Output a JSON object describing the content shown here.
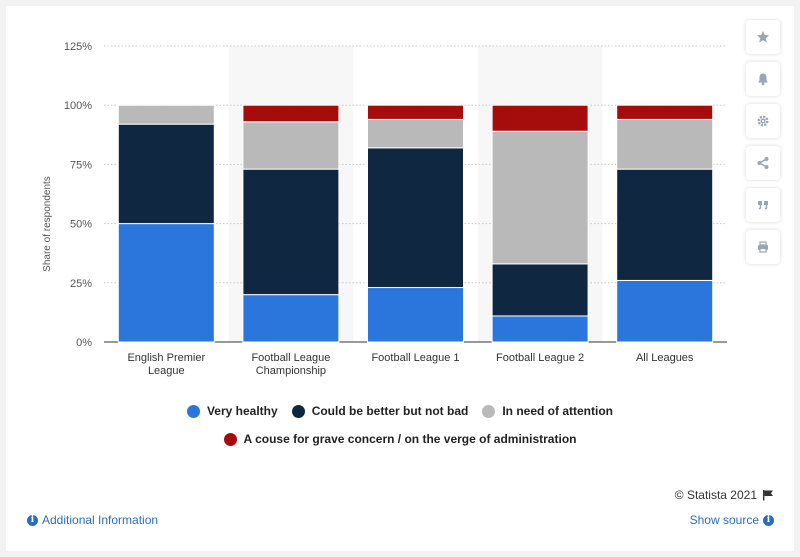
{
  "chart_data": {
    "type": "bar",
    "stacked": true,
    "title": "",
    "xlabel": "",
    "ylabel": "Share of respondents",
    "ylim": [
      0,
      125
    ],
    "yticks": [
      "0%",
      "25%",
      "50%",
      "75%",
      "100%",
      "125%"
    ],
    "grid": true,
    "legend_position": "bottom",
    "categories": [
      "English Premier League",
      "Football League Championship",
      "Football League 1",
      "Football League 2",
      "All Leagues"
    ],
    "category_lines": [
      [
        "English Premier",
        "League"
      ],
      [
        "Football League",
        "Championship"
      ],
      [
        "Football League 1"
      ],
      [
        "Football League 2"
      ],
      [
        "All Leagues"
      ]
    ],
    "series": [
      {
        "name": "Very healthy",
        "color": "#2a76dd",
        "values": [
          50,
          20,
          23,
          11,
          26
        ]
      },
      {
        "name": "Could be better but not bad",
        "color": "#0f2741",
        "values": [
          42,
          53,
          59,
          22,
          47
        ]
      },
      {
        "name": "In need of attention",
        "color": "#b9b9b9",
        "values": [
          8,
          20,
          12,
          56,
          21
        ]
      },
      {
        "name": "A couse for grave concern / on the verge of administration",
        "color": "#a50d0d",
        "values": [
          0,
          7,
          6,
          11,
          6
        ]
      }
    ]
  },
  "legend": {
    "row1": [
      {
        "label": "Very healthy",
        "color": "#2a76dd"
      },
      {
        "label": "Could be better but not bad",
        "color": "#0f2741"
      },
      {
        "label": "In need of attention",
        "color": "#b9b9b9"
      }
    ],
    "row2": [
      {
        "label": "A couse for grave concern / on the verge of administration",
        "color": "#a50d0d"
      }
    ]
  },
  "tools": [
    "star-icon",
    "bell-icon",
    "gear-icon",
    "share-icon",
    "quote-icon",
    "print-icon"
  ],
  "footer": {
    "credit": "© Statista 2021",
    "additional_info": "Additional Information",
    "show_source": "Show source"
  }
}
